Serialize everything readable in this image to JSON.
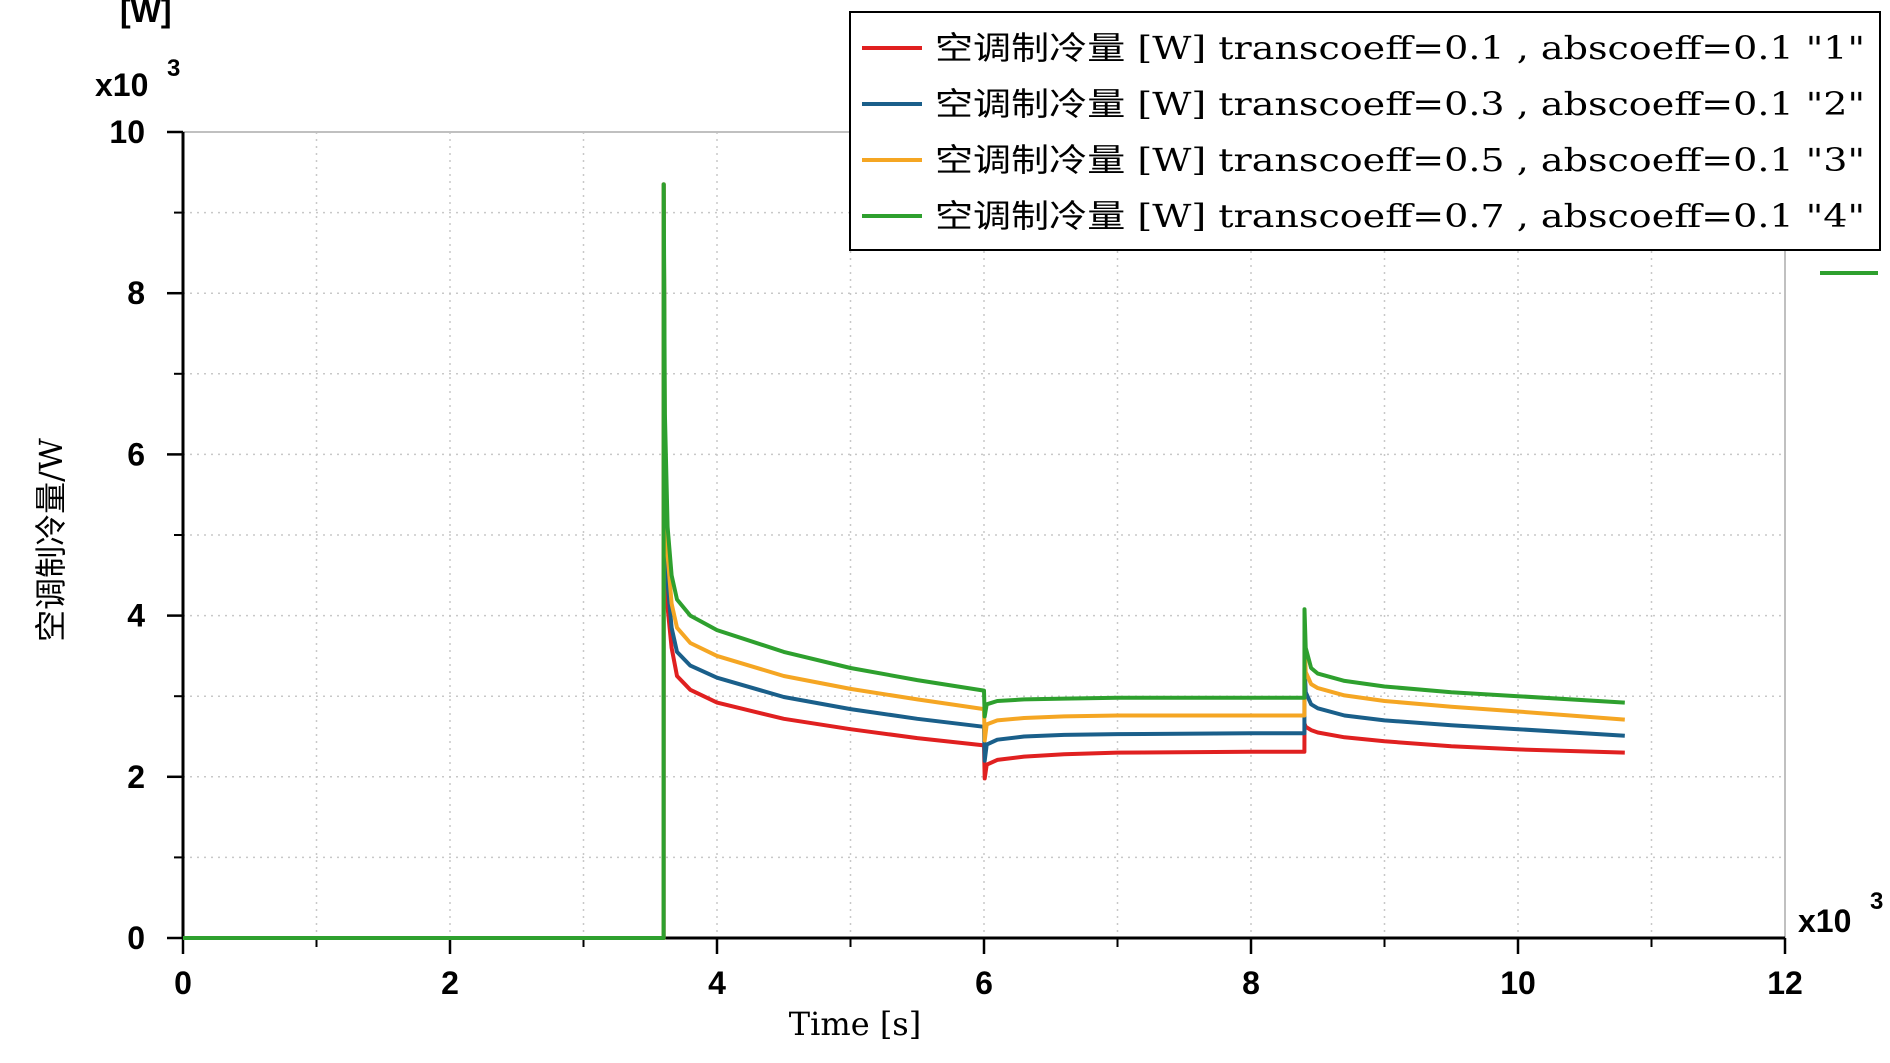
{
  "chart_data": {
    "type": "line",
    "xlabel": "Time [s]",
    "ylabel": "空调制冷量/W",
    "y_unit": "[W]",
    "x_multiplier": {
      "base": "x10",
      "exp": "3"
    },
    "y_multiplier": {
      "base": "x10",
      "exp": "3"
    },
    "xlim": [
      0,
      12000
    ],
    "ylim": [
      0,
      10000
    ],
    "x_ticks": [
      {
        "v": 0,
        "label": "0"
      },
      {
        "v": 2000,
        "label": "2"
      },
      {
        "v": 4000,
        "label": "4"
      },
      {
        "v": 6000,
        "label": "6"
      },
      {
        "v": 8000,
        "label": "8"
      },
      {
        "v": 10000,
        "label": "10"
      },
      {
        "v": 12000,
        "label": "12"
      }
    ],
    "y_ticks": [
      {
        "v": 0,
        "label": "0"
      },
      {
        "v": 2000,
        "label": "2"
      },
      {
        "v": 4000,
        "label": "4"
      },
      {
        "v": 6000,
        "label": "6"
      },
      {
        "v": 8000,
        "label": "8"
      },
      {
        "v": 10000,
        "label": "10"
      }
    ],
    "grid": true,
    "legend_position": "top-right",
    "series": [
      {
        "name": "空调制冷量 [W] transcoeff=0.1 , abscoeff=0.1  \"1\"",
        "color": "#e02020",
        "x": [
          0,
          3600,
          3601,
          3610,
          3630,
          3660,
          3700,
          3800,
          4000,
          4500,
          5000,
          5500,
          6000,
          6005,
          6020,
          6100,
          6300,
          6600,
          7000,
          8000,
          8400,
          8401,
          8410,
          8450,
          8500,
          8700,
          9000,
          9500,
          10000,
          10800
        ],
        "y": [
          0,
          0,
          9350,
          5200,
          4100,
          3600,
          3250,
          3080,
          2920,
          2720,
          2590,
          2480,
          2390,
          1980,
          2150,
          2210,
          2250,
          2280,
          2300,
          2310,
          2310,
          2660,
          2620,
          2580,
          2550,
          2490,
          2440,
          2380,
          2340,
          2300
        ]
      },
      {
        "name": "空调制冷量 [W] transcoeff=0.3 , abscoeff=0.1  \"2\"",
        "color": "#1a5f8a",
        "x": [
          0,
          3600,
          3601,
          3610,
          3630,
          3660,
          3700,
          3800,
          4000,
          4500,
          5000,
          5500,
          6000,
          6005,
          6020,
          6100,
          6300,
          6600,
          7000,
          8000,
          8400,
          8401,
          8410,
          8450,
          8500,
          8700,
          9000,
          9500,
          10000,
          10800
        ],
        "y": [
          0,
          0,
          9350,
          5500,
          4400,
          3850,
          3550,
          3380,
          3230,
          2990,
          2840,
          2720,
          2620,
          2200,
          2400,
          2460,
          2500,
          2520,
          2530,
          2540,
          2540,
          3400,
          3050,
          2900,
          2850,
          2760,
          2700,
          2640,
          2590,
          2510
        ]
      },
      {
        "name": "空调制冷量 [W] transcoeff=0.5 , abscoeff=0.1  \"3\"",
        "color": "#f5a623",
        "x": [
          0,
          3600,
          3601,
          3610,
          3630,
          3660,
          3700,
          3800,
          4000,
          4500,
          5000,
          5500,
          6000,
          6005,
          6020,
          6100,
          6300,
          6600,
          7000,
          8000,
          8400,
          8401,
          8410,
          8450,
          8500,
          8700,
          9000,
          9500,
          10000,
          10800
        ],
        "y": [
          0,
          0,
          9350,
          5900,
          4750,
          4150,
          3850,
          3660,
          3500,
          3250,
          3090,
          2960,
          2840,
          2450,
          2650,
          2700,
          2730,
          2750,
          2760,
          2760,
          2760,
          3700,
          3300,
          3150,
          3100,
          3010,
          2940,
          2870,
          2810,
          2710
        ]
      },
      {
        "name": "空调制冷量 [W] transcoeff=0.7 , abscoeff=0.1  \"4\"",
        "color": "#2ea02e",
        "x": [
          0,
          3600,
          3601,
          3610,
          3630,
          3660,
          3700,
          3800,
          4000,
          4500,
          5000,
          5500,
          6000,
          6005,
          6020,
          6100,
          6300,
          6600,
          7000,
          8000,
          8400,
          8401,
          8410,
          8450,
          8500,
          8700,
          9000,
          9500,
          10000,
          10800
        ],
        "y": [
          0,
          0,
          9350,
          6500,
          5100,
          4500,
          4200,
          4000,
          3820,
          3550,
          3350,
          3200,
          3070,
          2750,
          2900,
          2940,
          2960,
          2970,
          2980,
          2980,
          2980,
          4080,
          3600,
          3350,
          3280,
          3190,
          3120,
          3050,
          3000,
          2920
        ]
      }
    ]
  }
}
